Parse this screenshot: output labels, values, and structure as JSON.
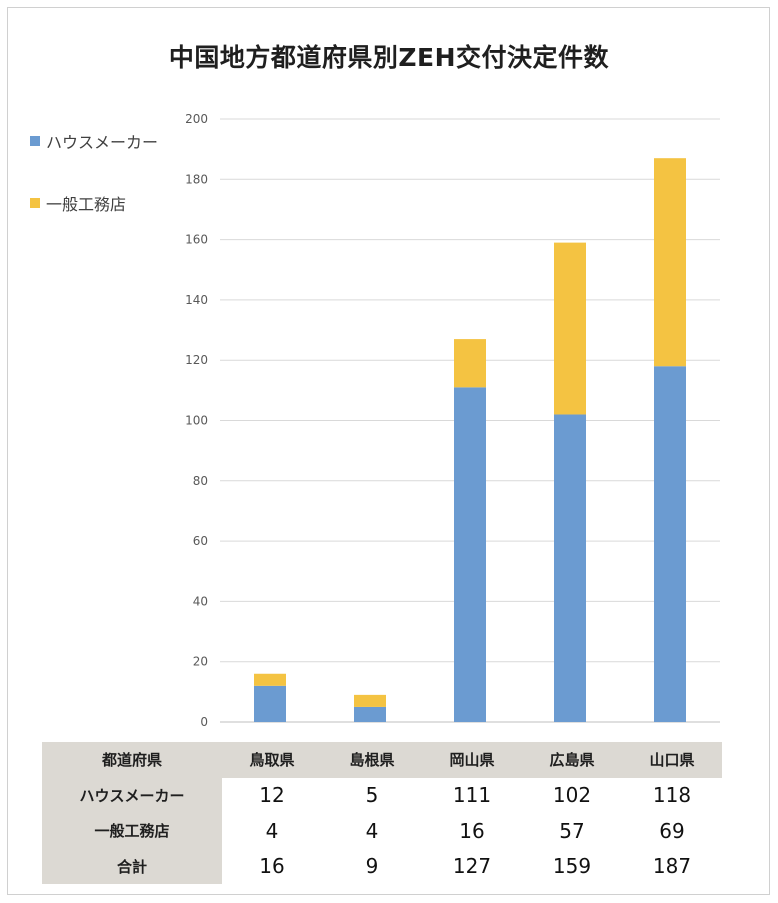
{
  "title": "中国地方都道府県別ZEH交付決定件数",
  "chart_data": {
    "type": "bar",
    "stacked": true,
    "title": "中国地方都道府県別ZEH交付決定件数",
    "categories": [
      "鳥取県",
      "島根県",
      "岡山県",
      "広島県",
      "山口県"
    ],
    "series": [
      {
        "name": "ハウスメーカー",
        "color": "#6b9bd1",
        "values": [
          12,
          5,
          111,
          102,
          118
        ]
      },
      {
        "name": "一般工務店",
        "color": "#f4c342",
        "values": [
          4,
          4,
          16,
          57,
          69
        ]
      }
    ],
    "ylim": [
      0,
      200
    ],
    "yticks": [
      "0",
      "20",
      "40",
      "60",
      "80",
      "100",
      "120",
      "140",
      "160",
      "180",
      "200"
    ],
    "grid": true,
    "legend_position": "top-left"
  },
  "table": {
    "header_label": "都道府県",
    "rows": [
      {
        "label": "ハウスメーカー",
        "values": [
          "12",
          "5",
          "111",
          "102",
          "118"
        ]
      },
      {
        "label": "一般工務店",
        "values": [
          "4",
          "4",
          "16",
          "57",
          "69"
        ]
      },
      {
        "label": "合計",
        "values": [
          "16",
          "9",
          "127",
          "159",
          "187"
        ]
      }
    ]
  }
}
